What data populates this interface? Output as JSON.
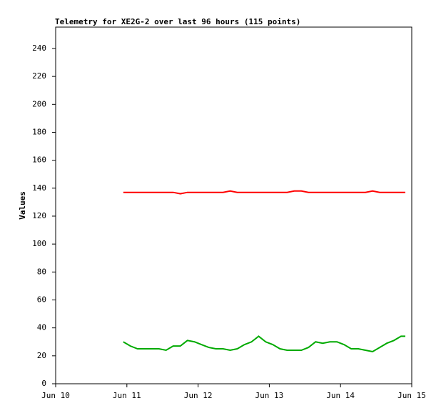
{
  "chart_data": {
    "type": "line",
    "title": "Telemetry for XE2G-2 over last 96 hours (115 points)",
    "y_label": "Values",
    "x": [
      0.95,
      1.05,
      1.15,
      1.25,
      1.35,
      1.45,
      1.55,
      1.65,
      1.75,
      1.85,
      1.95,
      2.05,
      2.15,
      2.25,
      2.35,
      2.45,
      2.55,
      2.65,
      2.75,
      2.85,
      2.95,
      3.05,
      3.15,
      3.25,
      3.35,
      3.45,
      3.55,
      3.65,
      3.75,
      3.85,
      3.95,
      4.05,
      4.15,
      4.25,
      4.35,
      4.45,
      4.55,
      4.65,
      4.75,
      4.85,
      4.91
    ],
    "series": [
      {
        "color": "#ff0000",
        "values": [
          137,
          137,
          137,
          137,
          137,
          137,
          137,
          137,
          136,
          137,
          137,
          137,
          137,
          137,
          137,
          138,
          137,
          137,
          137,
          137,
          137,
          137,
          137,
          137,
          138,
          138,
          137,
          137,
          137,
          137,
          137,
          137,
          137,
          137,
          137,
          138,
          137,
          137,
          137,
          137,
          137
        ]
      },
      {
        "color": "#00aa00",
        "values": [
          30,
          27,
          25,
          25,
          25,
          25,
          24,
          27,
          27,
          31,
          30,
          28,
          26,
          25,
          25,
          24,
          25,
          28,
          30,
          34,
          30,
          28,
          25,
          24,
          24,
          24,
          26,
          30,
          29,
          30,
          30,
          28,
          25,
          25,
          24,
          23,
          26,
          29,
          31,
          34,
          34
        ]
      }
    ],
    "xlim": [
      0,
      5
    ],
    "xticks": [
      {
        "value": 0,
        "label": "Jun 10"
      },
      {
        "value": 1,
        "label": "Jun 11"
      },
      {
        "value": 2,
        "label": "Jun 12"
      },
      {
        "value": 3,
        "label": "Jun 13"
      },
      {
        "value": 4,
        "label": "Jun 14"
      },
      {
        "value": 5,
        "label": "Jun 15"
      }
    ],
    "ylim": [
      0,
      255.3
    ],
    "yticks": [
      0,
      20,
      40,
      60,
      80,
      100,
      120,
      140,
      160,
      180,
      200,
      220,
      240
    ]
  }
}
